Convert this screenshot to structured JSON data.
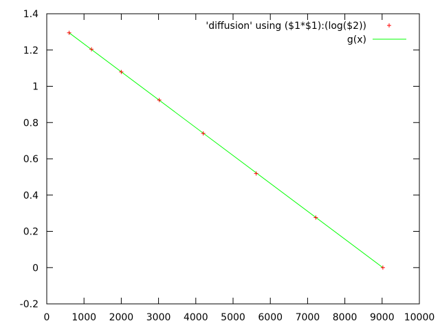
{
  "chart_data": {
    "type": "scatter",
    "title": "",
    "xlabel": "",
    "ylabel": "",
    "xlim": [
      0,
      10000
    ],
    "ylim": [
      -0.2,
      1.4
    ],
    "xticks": [
      0,
      1000,
      2000,
      3000,
      4000,
      5000,
      6000,
      7000,
      8000,
      9000,
      10000
    ],
    "yticks": [
      -0.2,
      0,
      0.2,
      0.4,
      0.6,
      0.8,
      1,
      1.2,
      1.4
    ],
    "legend_position": "top-right",
    "series": [
      {
        "name": "'diffusion' using ($1*$1):(log($2))",
        "type": "scatter",
        "marker": "+",
        "color": "#ff0000",
        "x": [
          600,
          1200,
          2000,
          3020,
          4200,
          5620,
          7220,
          9020
        ],
        "y": [
          1.295,
          1.204,
          1.079,
          0.924,
          0.74,
          0.519,
          0.276,
          0.0
        ]
      },
      {
        "name": "g(x)",
        "type": "line",
        "color": "#00ff00",
        "x": [
          600,
          9020
        ],
        "y": [
          1.295,
          0.0
        ]
      }
    ]
  }
}
